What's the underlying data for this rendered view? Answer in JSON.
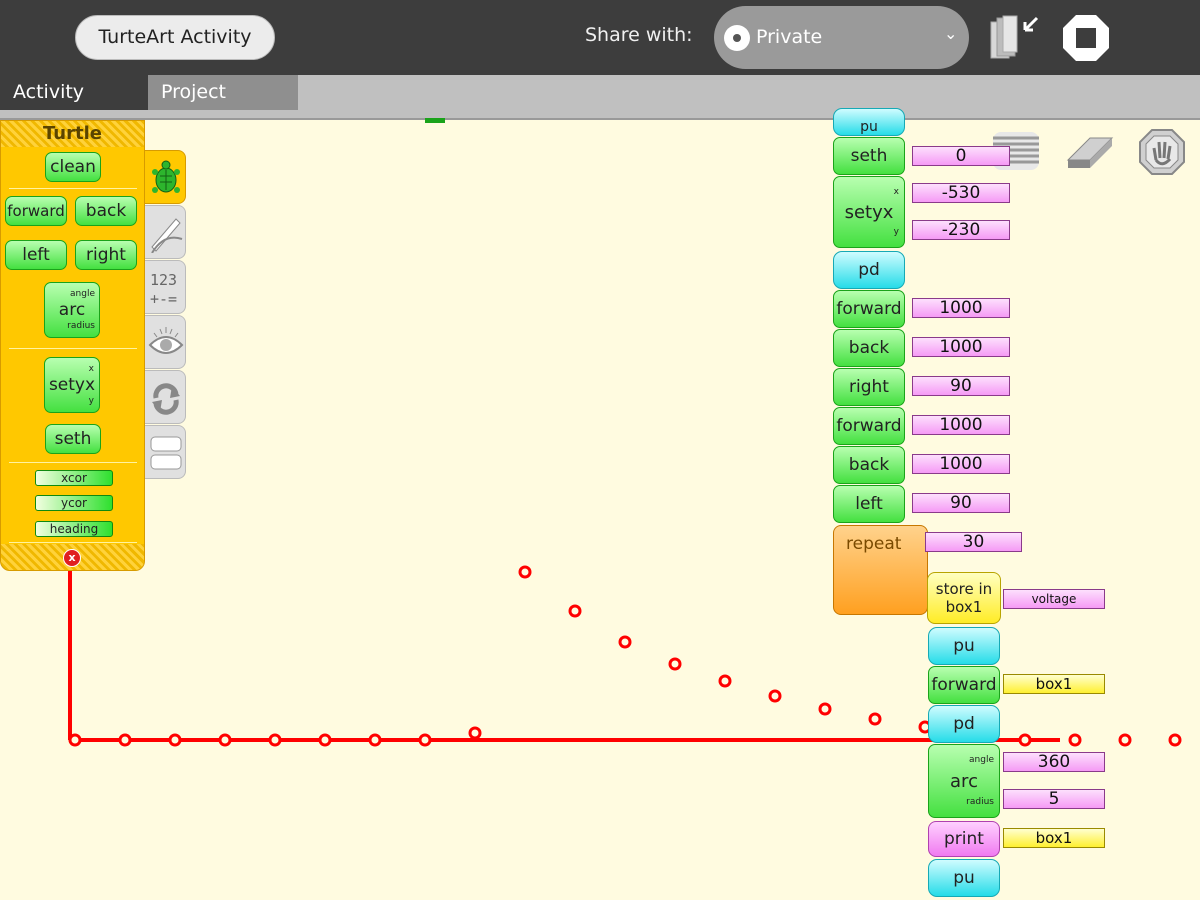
{
  "toolbar": {
    "activity_title": "TurteArt Activity",
    "share_label": "Share with:",
    "share_value": "Private"
  },
  "tabs": {
    "activity": "Activity",
    "project": "Project"
  },
  "palette": {
    "title": "Turtle",
    "blocks": {
      "clean": "clean",
      "forward": "forward",
      "back": "back",
      "left": "left",
      "right": "right",
      "arc": "arc",
      "arc_angle": "angle",
      "arc_radius": "radius",
      "setyx": "setyx",
      "setyx_x": "x",
      "setyx_y": "y",
      "seth": "seth",
      "xcor": "xcor",
      "ycor": "ycor",
      "heading": "heading"
    }
  },
  "program": {
    "seth": "seth",
    "seth_val": "0",
    "setyx": "setyx",
    "setyx_x_label": "x",
    "setyx_y_label": "y",
    "setyx_x": "-530",
    "setyx_y": "-230",
    "pd1": "pd",
    "fwd1": "forward",
    "fwd1_val": "1000",
    "back1": "back",
    "back1_val": "1000",
    "right1": "right",
    "right1_val": "90",
    "fwd2": "forward",
    "fwd2_val": "1000",
    "back2": "back",
    "back2_val": "1000",
    "left1": "left",
    "left1_val": "90",
    "repeat": "repeat",
    "repeat_val": "30",
    "store_line1": "store in",
    "store_line2": "box1",
    "store_val": "voltage",
    "pu1": "pu",
    "fwd3": "forward",
    "fwd3_val": "box1",
    "pd2": "pd",
    "arc": "arc",
    "arc_angle_label": "angle",
    "arc_radius_label": "radius",
    "arc_angle": "360",
    "arc_radius": "5",
    "print": "print",
    "print_val": "box1",
    "pu2": "pu",
    "top_partial": "pu"
  },
  "colors": {
    "trail": "#ff0000",
    "canvas": "#fffbe0",
    "palette": "#ffc800"
  },
  "icons": [
    "turtle-icon",
    "pen-icon",
    "numbers-icon",
    "sensors-icon",
    "flow-icon",
    "blocks-icon",
    "hide-blocks-icon",
    "eraser-icon",
    "stop-turtle-icon",
    "keep-icon",
    "stop-icon"
  ]
}
